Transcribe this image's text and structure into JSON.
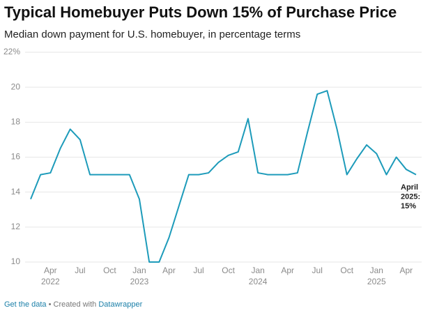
{
  "chart_data": {
    "type": "line",
    "title": "Typical Homebuyer Puts Down 15% of Purchase Price",
    "subtitle": "Median down payment for U.S. homebuyer, in percentage terms",
    "series": [
      {
        "name": "Median down payment",
        "color": "#1d9bba",
        "values": [
          13.6,
          15.0,
          15.1,
          16.5,
          17.6,
          17.0,
          15.0,
          15.0,
          15.0,
          15.0,
          15.0,
          13.6,
          10.0,
          10.0,
          11.4,
          13.2,
          15.0,
          15.0,
          15.1,
          15.7,
          16.1,
          16.3,
          18.2,
          15.1,
          15.0,
          15.0,
          15.0,
          15.1,
          17.4,
          19.6,
          19.8,
          17.6,
          15.0,
          15.9,
          16.7,
          16.2,
          15.0,
          16.0,
          15.3,
          15.0
        ]
      }
    ],
    "ylim": [
      10,
      22
    ],
    "yticks": [
      10,
      12,
      14,
      16,
      18,
      20,
      {
        "value": 22,
        "label": "22%"
      }
    ],
    "xticks": [
      {
        "value": 2,
        "label": "Apr"
      },
      {
        "value": 5,
        "label": "Jul"
      },
      {
        "value": 8,
        "label": "Oct"
      },
      {
        "value": 11,
        "label": "Jan"
      },
      {
        "value": 14,
        "label": "Apr"
      },
      {
        "value": 17,
        "label": "Jul"
      },
      {
        "value": 20,
        "label": "Oct"
      },
      {
        "value": 23,
        "label": "Jan"
      },
      {
        "value": 26,
        "label": "Apr"
      },
      {
        "value": 29,
        "label": "Jul"
      },
      {
        "value": 32,
        "label": "Oct"
      },
      {
        "value": 35,
        "label": "Jan"
      },
      {
        "value": 38,
        "label": "Apr"
      }
    ],
    "xtick_years": [
      {
        "value": 2,
        "label": "2022"
      },
      {
        "value": 11,
        "label": "2023"
      },
      {
        "value": 23,
        "label": "2024"
      },
      {
        "value": 35,
        "label": "2025"
      }
    ],
    "annotation": [
      "April",
      "2025:",
      "15%"
    ],
    "grid": true
  },
  "footer": {
    "link": "Get the data",
    "text": "• Created with",
    "credit": "Datawrapper"
  }
}
